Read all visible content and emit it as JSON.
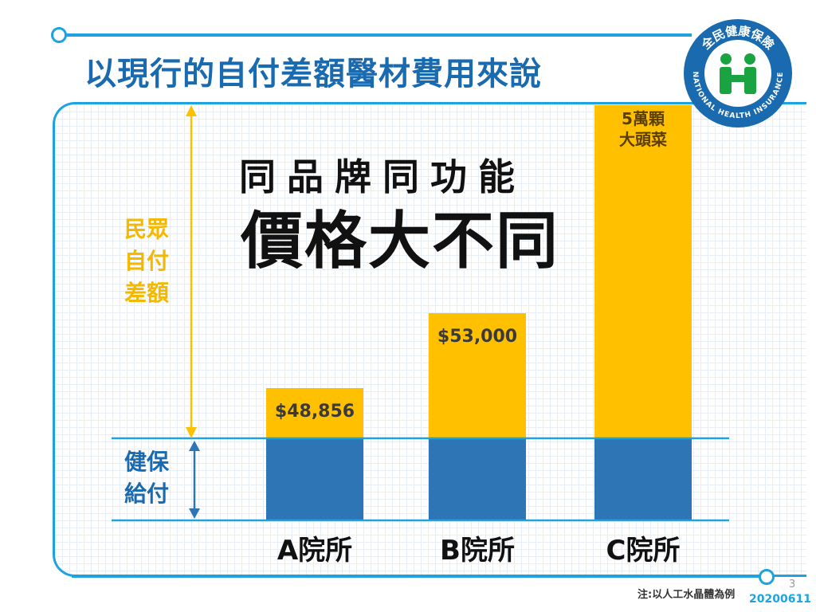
{
  "title": "以現行的自付差額醫材費用來說",
  "headline": {
    "line1": "同品牌同功能",
    "line2": "價格大不同"
  },
  "logo": {
    "text_cn": "全民健康保險",
    "text_en": "NATIONAL HEALTH INSURANCE",
    "ring_color": "#1a6ab0",
    "figure_color": "#1aa341"
  },
  "side_labels": {
    "patient": [
      "民眾",
      "自付",
      "差額"
    ],
    "insurance": [
      "健保",
      "給付"
    ]
  },
  "colors": {
    "patient_bar": "#ffc000",
    "insurance_bar": "#2e75b6",
    "frame": "#1fa3e0",
    "title": "#1a6ab0"
  },
  "chart_data": {
    "type": "bar",
    "stacked": true,
    "categories": [
      "A院所",
      "B院所",
      "C院所"
    ],
    "series": [
      {
        "values": [
          1,
          1,
          1
        ]
      },
      {
        "values": [
          48856,
          53000,
          50000
        ],
        "labels": [
          "$48,856",
          "$53,000",
          "5萬顆\n大頭菜"
        ]
      }
    ],
    "grid": true
  },
  "footnote": "注:以人工水晶體為例",
  "page_number": "3",
  "date": "20200611"
}
